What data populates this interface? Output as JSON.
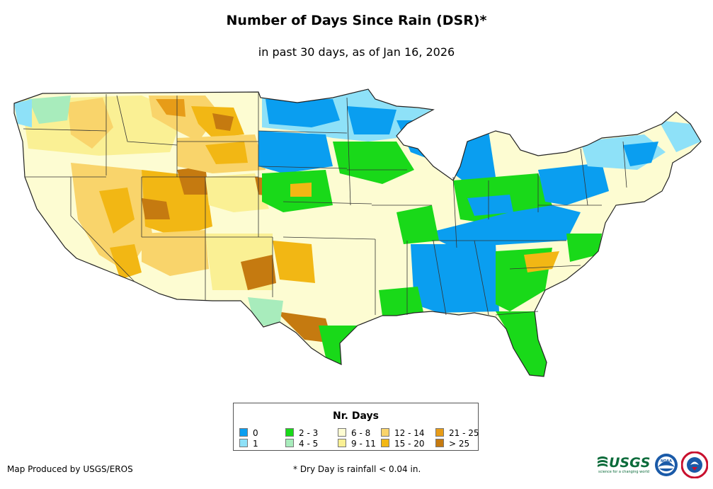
{
  "title": "Number of Days Since Rain (DSR)*",
  "subtitle": "in past 30 days, as of Jan 16, 2026",
  "legend": {
    "title": "Nr. Days",
    "items": [
      {
        "label": "0",
        "color": "#0a9ef0"
      },
      {
        "label": "1",
        "color": "#8ee1f8"
      },
      {
        "label": "2 - 3",
        "color": "#19d919"
      },
      {
        "label": "4 - 5",
        "color": "#a8ecbc"
      },
      {
        "label": "6 - 8",
        "color": "#fdfcd2"
      },
      {
        "label": "9 - 11",
        "color": "#faf094"
      },
      {
        "label": "12 - 14",
        "color": "#f9d46b"
      },
      {
        "label": "15 - 20",
        "color": "#f2b714"
      },
      {
        "label": "21 - 25",
        "color": "#e79c18"
      },
      {
        "label": "> 25",
        "color": "#c57a10"
      }
    ]
  },
  "credit": "Map Produced by USGS/EROS",
  "footnote": "* Dry Day is rainfall < 0.04 in.",
  "logos": {
    "usgs_text": "USGS",
    "usgs_tagline": "science for a changing world",
    "noaa_text": "NOAA"
  }
}
